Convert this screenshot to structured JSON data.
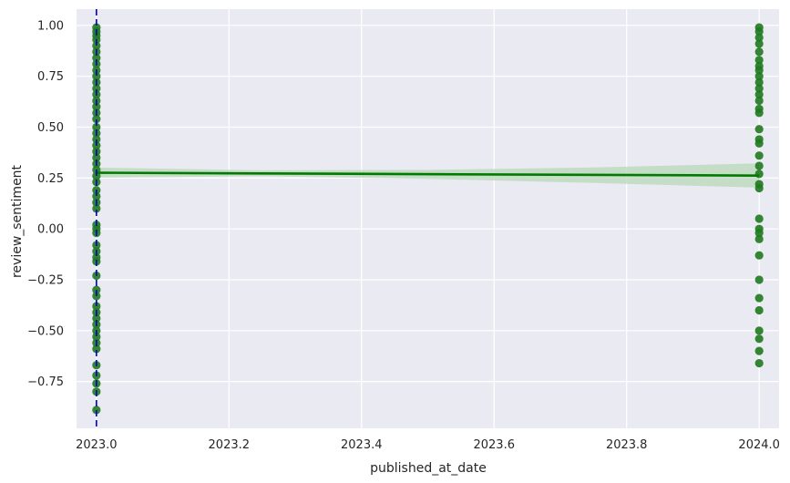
{
  "chart_data": {
    "type": "scatter",
    "xlabel": "published_at_date",
    "ylabel": "review_sentiment",
    "xlim": [
      2022.97,
      2024.03
    ],
    "ylim": [
      -0.98,
      1.08
    ],
    "x_ticks": [
      2023.0,
      2023.2,
      2023.4,
      2023.6,
      2023.8,
      2024.0
    ],
    "x_tick_labels": [
      "2023.0",
      "2023.2",
      "2023.4",
      "2023.6",
      "2023.8",
      "2024.0"
    ],
    "y_ticks": [
      1.0,
      0.75,
      0.5,
      0.25,
      0.0,
      -0.25,
      -0.5,
      -0.75
    ],
    "y_tick_labels": [
      "1.00",
      "0.75",
      "0.50",
      "0.25",
      "0.00",
      "−0.25",
      "−0.50",
      "−0.75"
    ],
    "grid": true,
    "background_color": "#eaeaf2",
    "point_color": "#1f7a1f",
    "line_color": "#007a00",
    "band_color": "#b8d8b8",
    "vline_color": "#0000cc",
    "vline_x": 2023.0,
    "points": [
      {
        "x": 2023.0,
        "y": 0.99
      },
      {
        "x": 2023.0,
        "y": 0.97
      },
      {
        "x": 2023.0,
        "y": 0.95
      },
      {
        "x": 2023.0,
        "y": 0.93
      },
      {
        "x": 2023.0,
        "y": 0.9
      },
      {
        "x": 2023.0,
        "y": 0.87
      },
      {
        "x": 2023.0,
        "y": 0.84
      },
      {
        "x": 2023.0,
        "y": 0.81
      },
      {
        "x": 2023.0,
        "y": 0.78
      },
      {
        "x": 2023.0,
        "y": 0.75
      },
      {
        "x": 2023.0,
        "y": 0.72
      },
      {
        "x": 2023.0,
        "y": 0.69
      },
      {
        "x": 2023.0,
        "y": 0.66
      },
      {
        "x": 2023.0,
        "y": 0.63
      },
      {
        "x": 2023.0,
        "y": 0.6
      },
      {
        "x": 2023.0,
        "y": 0.57
      },
      {
        "x": 2023.0,
        "y": 0.54
      },
      {
        "x": 2023.0,
        "y": 0.5
      },
      {
        "x": 2023.0,
        "y": 0.47
      },
      {
        "x": 2023.0,
        "y": 0.44
      },
      {
        "x": 2023.0,
        "y": 0.41
      },
      {
        "x": 2023.0,
        "y": 0.38
      },
      {
        "x": 2023.0,
        "y": 0.35
      },
      {
        "x": 2023.0,
        "y": 0.32
      },
      {
        "x": 2023.0,
        "y": 0.29
      },
      {
        "x": 2023.0,
        "y": 0.26
      },
      {
        "x": 2023.0,
        "y": 0.23
      },
      {
        "x": 2023.0,
        "y": 0.19
      },
      {
        "x": 2023.0,
        "y": 0.16
      },
      {
        "x": 2023.0,
        "y": 0.13
      },
      {
        "x": 2023.0,
        "y": 0.1
      },
      {
        "x": 2023.0,
        "y": 0.02
      },
      {
        "x": 2023.0,
        "y": 0.0
      },
      {
        "x": 2023.0,
        "y": -0.02
      },
      {
        "x": 2023.0,
        "y": -0.08
      },
      {
        "x": 2023.0,
        "y": -0.11
      },
      {
        "x": 2023.0,
        "y": -0.14
      },
      {
        "x": 2023.0,
        "y": -0.16
      },
      {
        "x": 2023.0,
        "y": -0.23
      },
      {
        "x": 2023.0,
        "y": -0.3
      },
      {
        "x": 2023.0,
        "y": -0.33
      },
      {
        "x": 2023.0,
        "y": -0.38
      },
      {
        "x": 2023.0,
        "y": -0.41
      },
      {
        "x": 2023.0,
        "y": -0.44
      },
      {
        "x": 2023.0,
        "y": -0.47
      },
      {
        "x": 2023.0,
        "y": -0.5
      },
      {
        "x": 2023.0,
        "y": -0.53
      },
      {
        "x": 2023.0,
        "y": -0.56
      },
      {
        "x": 2023.0,
        "y": -0.59
      },
      {
        "x": 2023.0,
        "y": -0.67
      },
      {
        "x": 2023.0,
        "y": -0.72
      },
      {
        "x": 2023.0,
        "y": -0.76
      },
      {
        "x": 2023.0,
        "y": -0.8
      },
      {
        "x": 2023.0,
        "y": -0.89
      },
      {
        "x": 2024.0,
        "y": 0.99
      },
      {
        "x": 2024.0,
        "y": 0.97
      },
      {
        "x": 2024.0,
        "y": 0.94
      },
      {
        "x": 2024.0,
        "y": 0.91
      },
      {
        "x": 2024.0,
        "y": 0.87
      },
      {
        "x": 2024.0,
        "y": 0.83
      },
      {
        "x": 2024.0,
        "y": 0.8
      },
      {
        "x": 2024.0,
        "y": 0.78
      },
      {
        "x": 2024.0,
        "y": 0.75
      },
      {
        "x": 2024.0,
        "y": 0.72
      },
      {
        "x": 2024.0,
        "y": 0.69
      },
      {
        "x": 2024.0,
        "y": 0.66
      },
      {
        "x": 2024.0,
        "y": 0.63
      },
      {
        "x": 2024.0,
        "y": 0.59
      },
      {
        "x": 2024.0,
        "y": 0.57
      },
      {
        "x": 2024.0,
        "y": 0.49
      },
      {
        "x": 2024.0,
        "y": 0.44
      },
      {
        "x": 2024.0,
        "y": 0.42
      },
      {
        "x": 2024.0,
        "y": 0.36
      },
      {
        "x": 2024.0,
        "y": 0.31
      },
      {
        "x": 2024.0,
        "y": 0.27
      },
      {
        "x": 2024.0,
        "y": 0.22
      },
      {
        "x": 2024.0,
        "y": 0.2
      },
      {
        "x": 2024.0,
        "y": 0.05
      },
      {
        "x": 2024.0,
        "y": 0.0
      },
      {
        "x": 2024.0,
        "y": -0.02
      },
      {
        "x": 2024.0,
        "y": -0.05
      },
      {
        "x": 2024.0,
        "y": -0.13
      },
      {
        "x": 2024.0,
        "y": -0.25
      },
      {
        "x": 2024.0,
        "y": -0.34
      },
      {
        "x": 2024.0,
        "y": -0.4
      },
      {
        "x": 2024.0,
        "y": -0.5
      },
      {
        "x": 2024.0,
        "y": -0.54
      },
      {
        "x": 2024.0,
        "y": -0.6
      },
      {
        "x": 2024.0,
        "y": -0.66
      }
    ],
    "regression_line": {
      "x": [
        2023.0,
        2024.0
      ],
      "y": [
        0.276,
        0.262
      ]
    },
    "confidence_band": {
      "x": [
        2023.0,
        2023.25,
        2023.5,
        2023.75,
        2024.0
      ],
      "lower": [
        0.252,
        0.259,
        0.246,
        0.226,
        0.203
      ],
      "upper": [
        0.301,
        0.288,
        0.29,
        0.302,
        0.322
      ]
    }
  }
}
